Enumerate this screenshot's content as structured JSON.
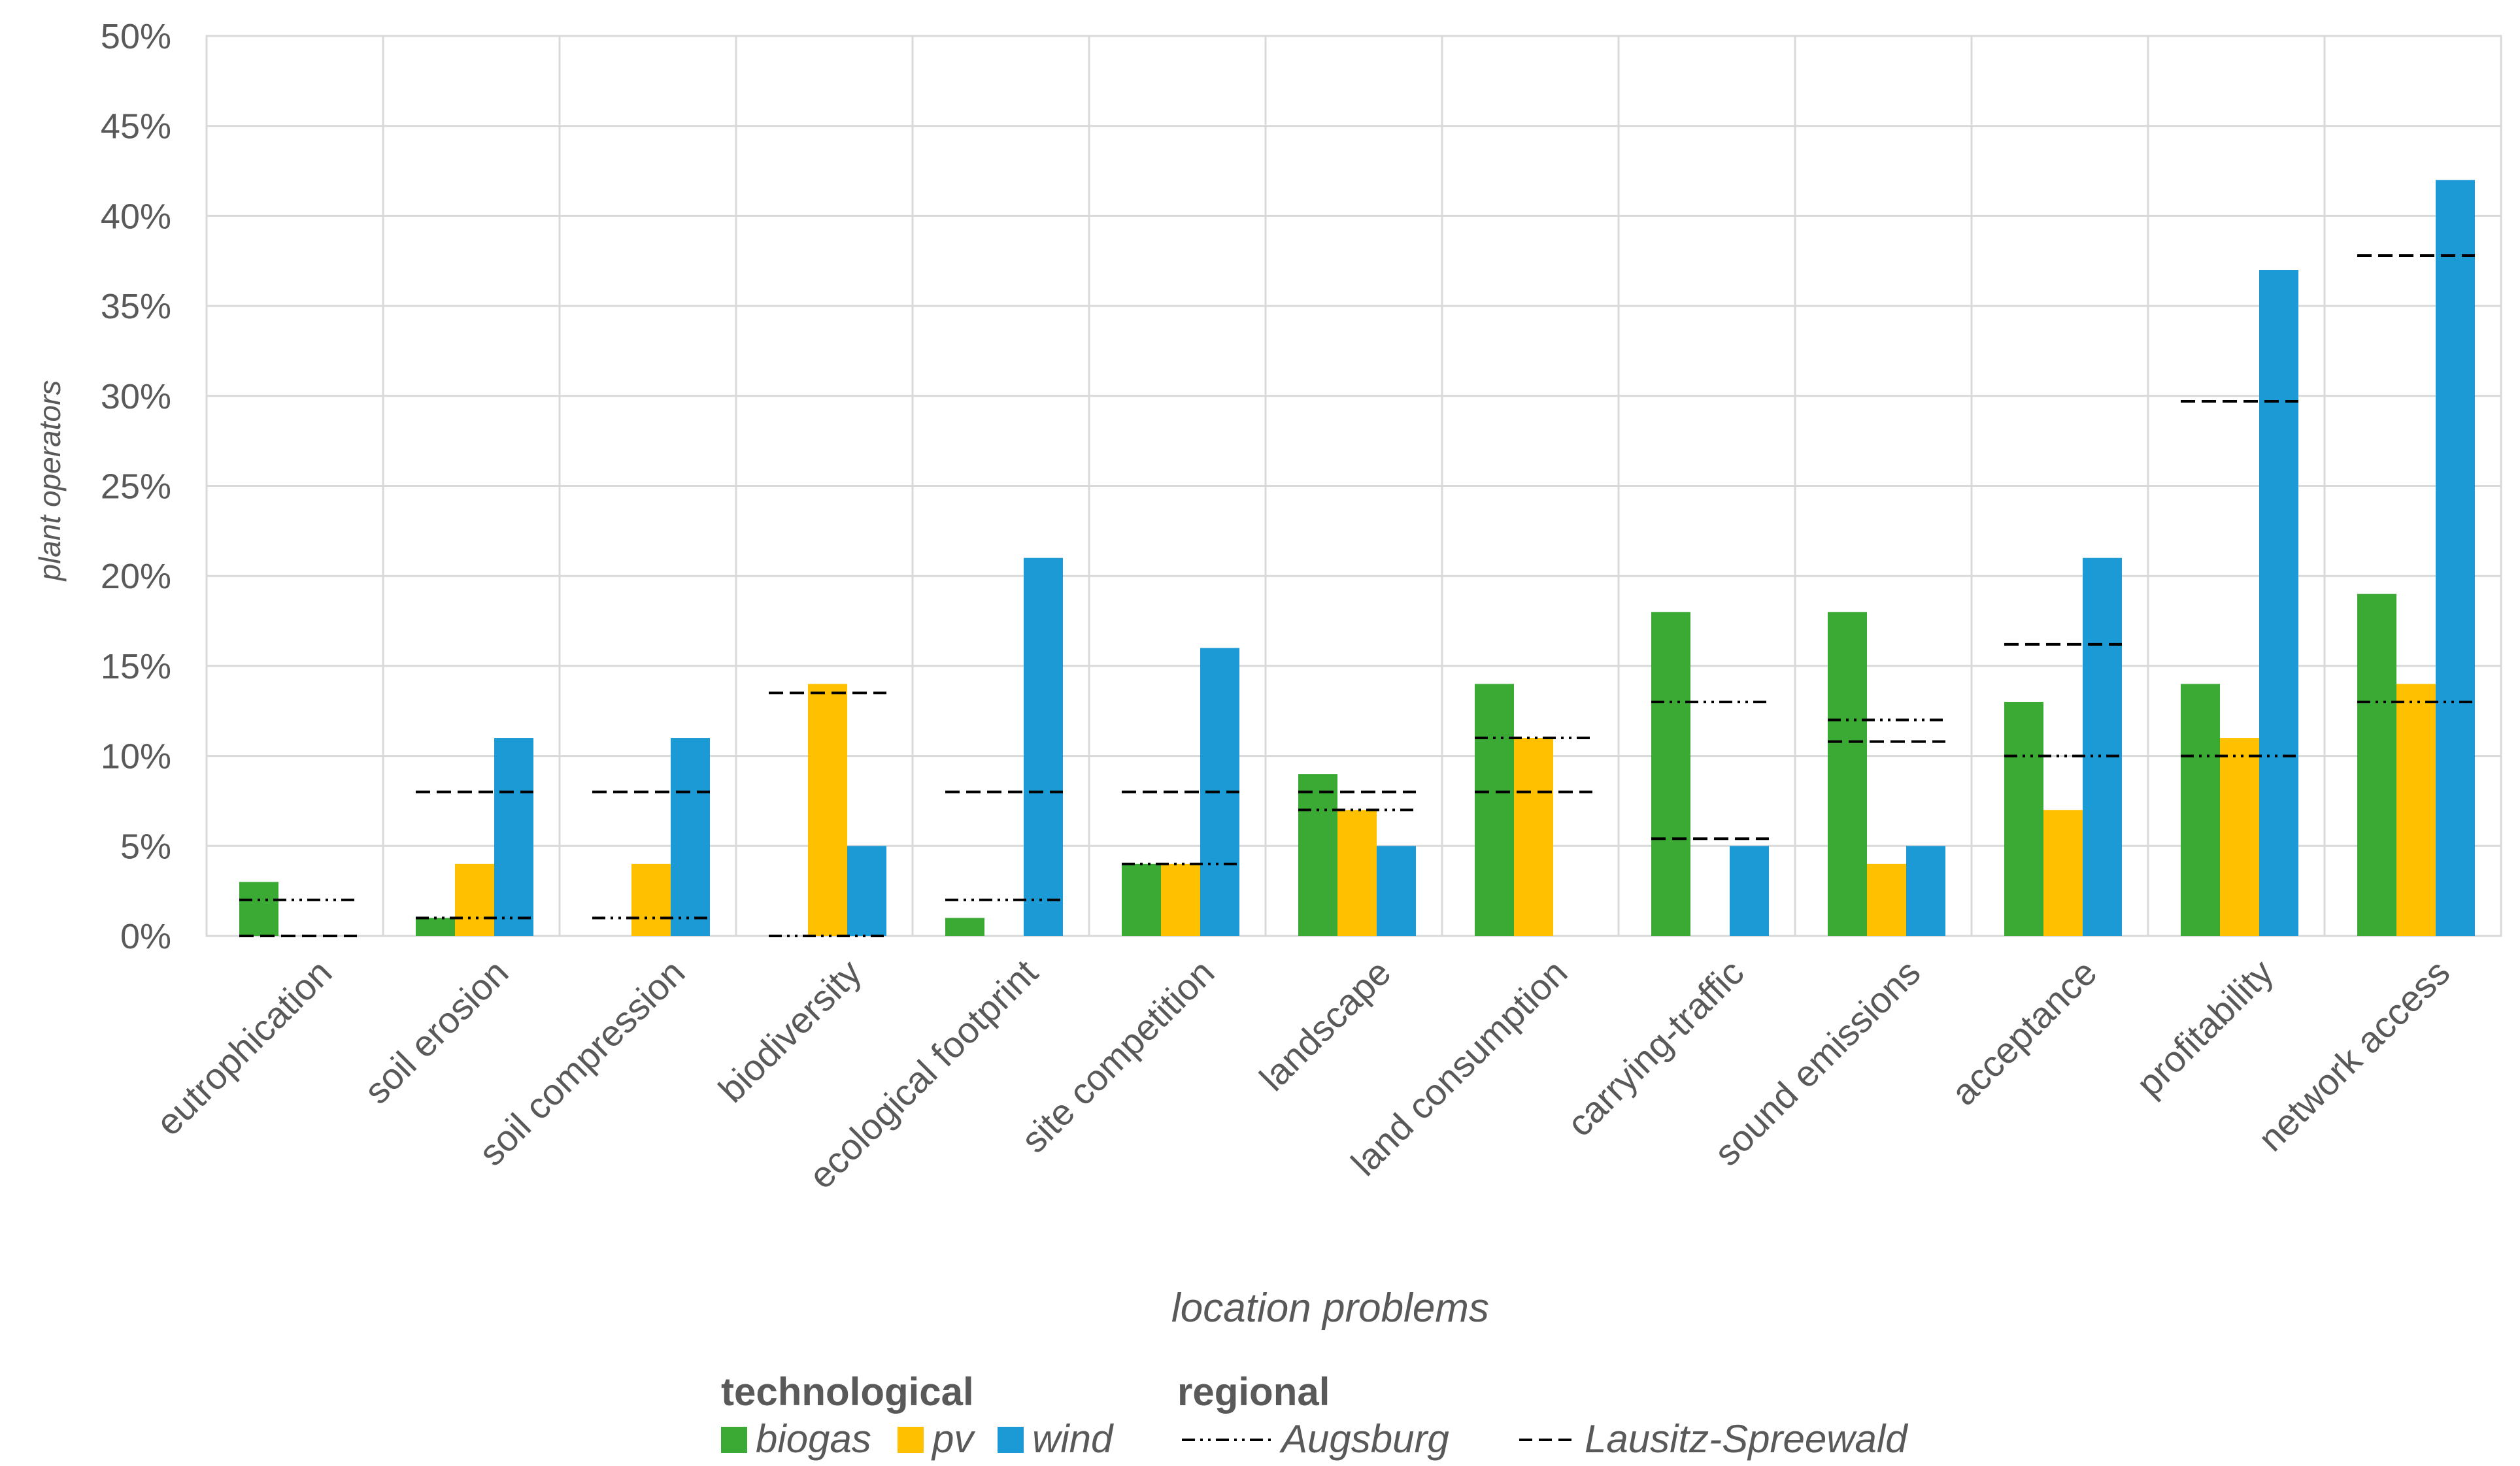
{
  "chart_data": {
    "type": "bar",
    "ylabel": "plant operators",
    "xlabel": "location problems",
    "ylim": [
      0,
      50
    ],
    "y_ticks": [
      0,
      5,
      10,
      15,
      20,
      25,
      30,
      35,
      40,
      45,
      50
    ],
    "y_tick_labels": [
      "0%",
      "5%",
      "10%",
      "15%",
      "20%",
      "25%",
      "30%",
      "35%",
      "40%",
      "45%",
      "50%"
    ],
    "grid": true,
    "categories": [
      "eutrophication",
      "soil erosion",
      "soil compression",
      "biodiversity",
      "ecological footprint",
      "site competition",
      "landscape",
      "land consumption",
      "carrying-traffic",
      "sound emissions",
      "acceptance",
      "profitability",
      "network access"
    ],
    "series": [
      {
        "name": "biogas",
        "kind": "bar",
        "color": "#3aaa35",
        "values": [
          3,
          1,
          0,
          0,
          1,
          4,
          9,
          14,
          18,
          18,
          13,
          14,
          19
        ]
      },
      {
        "name": "pv",
        "kind": "bar",
        "color": "#ffc000",
        "values": [
          0,
          4,
          4,
          14,
          0,
          4,
          7,
          11,
          0,
          4,
          7,
          11,
          14
        ]
      },
      {
        "name": "wind",
        "kind": "bar",
        "color": "#1b9ad6",
        "values": [
          0,
          11,
          11,
          5,
          21,
          16,
          5,
          0,
          5,
          5,
          21,
          37,
          42
        ]
      },
      {
        "name": "Augsburg",
        "kind": "line-marker",
        "dash": "dash-dot-dot",
        "color": "#000000",
        "values": [
          2,
          1,
          1,
          0,
          2,
          4,
          7,
          11,
          13,
          12,
          10,
          10,
          13
        ]
      },
      {
        "name": "Lausitz-Spreewald",
        "kind": "line-marker",
        "dash": "dashed",
        "color": "#000000",
        "values": [
          0,
          8,
          8,
          13.5,
          8,
          8,
          8,
          8,
          5.4,
          10.8,
          16.2,
          29.7,
          37.8
        ]
      }
    ],
    "legend": {
      "placement": "bottom",
      "groups": [
        {
          "heading": "technological",
          "items": [
            "biogas",
            "pv",
            "wind"
          ]
        },
        {
          "heading": "regional",
          "items": [
            "Augsburg",
            "Lausitz-Spreewald"
          ]
        }
      ]
    }
  }
}
